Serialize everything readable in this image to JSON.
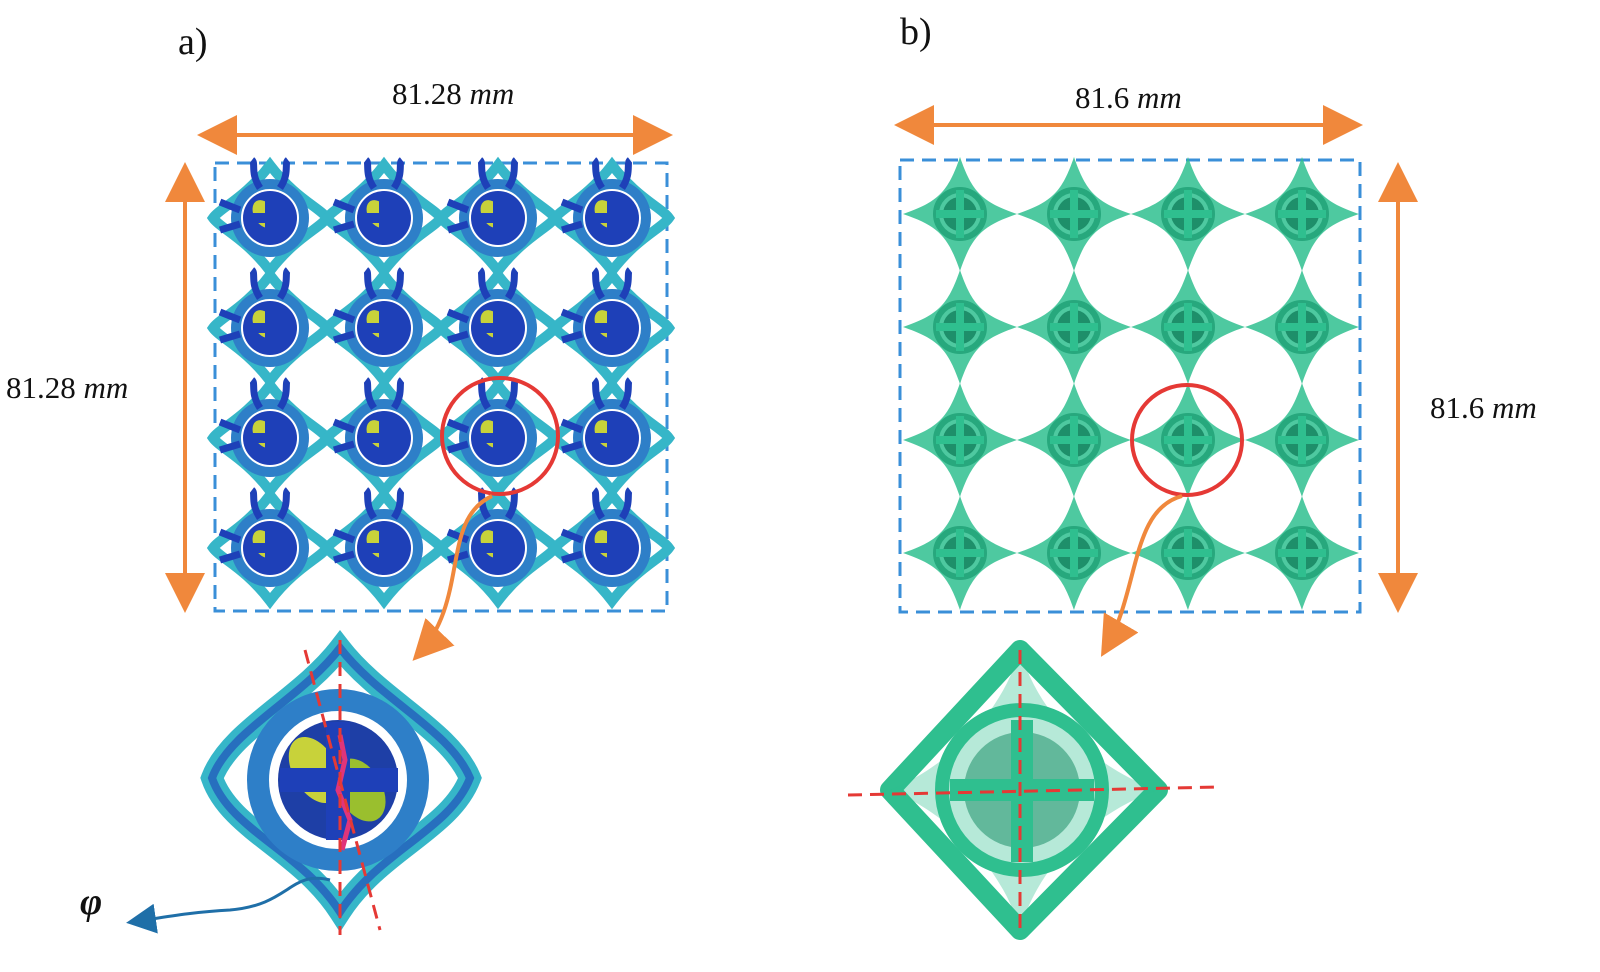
{
  "panels": [
    {
      "label": "a)",
      "width_dim": {
        "value": "81.28",
        "unit": "mm"
      },
      "height_dim": {
        "value": "81.28",
        "unit": "mm"
      },
      "angle_symbol": "φ"
    },
    {
      "label": "b)",
      "width_dim": {
        "value": "81.6",
        "unit": "mm"
      },
      "height_dim": {
        "value": "81.6",
        "unit": "mm"
      }
    }
  ],
  "colors": {
    "dimension_arrow": "#F0883C",
    "boundary_dashed": "#3A8FD8",
    "highlight_circle": "#E53935",
    "axis_dashed": "#E53935",
    "deformed_lattice_blue": "#1E40B8",
    "deformed_lattice_cyan": "#36B6C8",
    "deformed_lattice_yellow": "#C8D23A",
    "undeformed_lattice": "#2FBF8F",
    "phi_arrow": "#1F6FA8"
  },
  "lattice_grid": {
    "rows": 4,
    "cols": 4
  }
}
